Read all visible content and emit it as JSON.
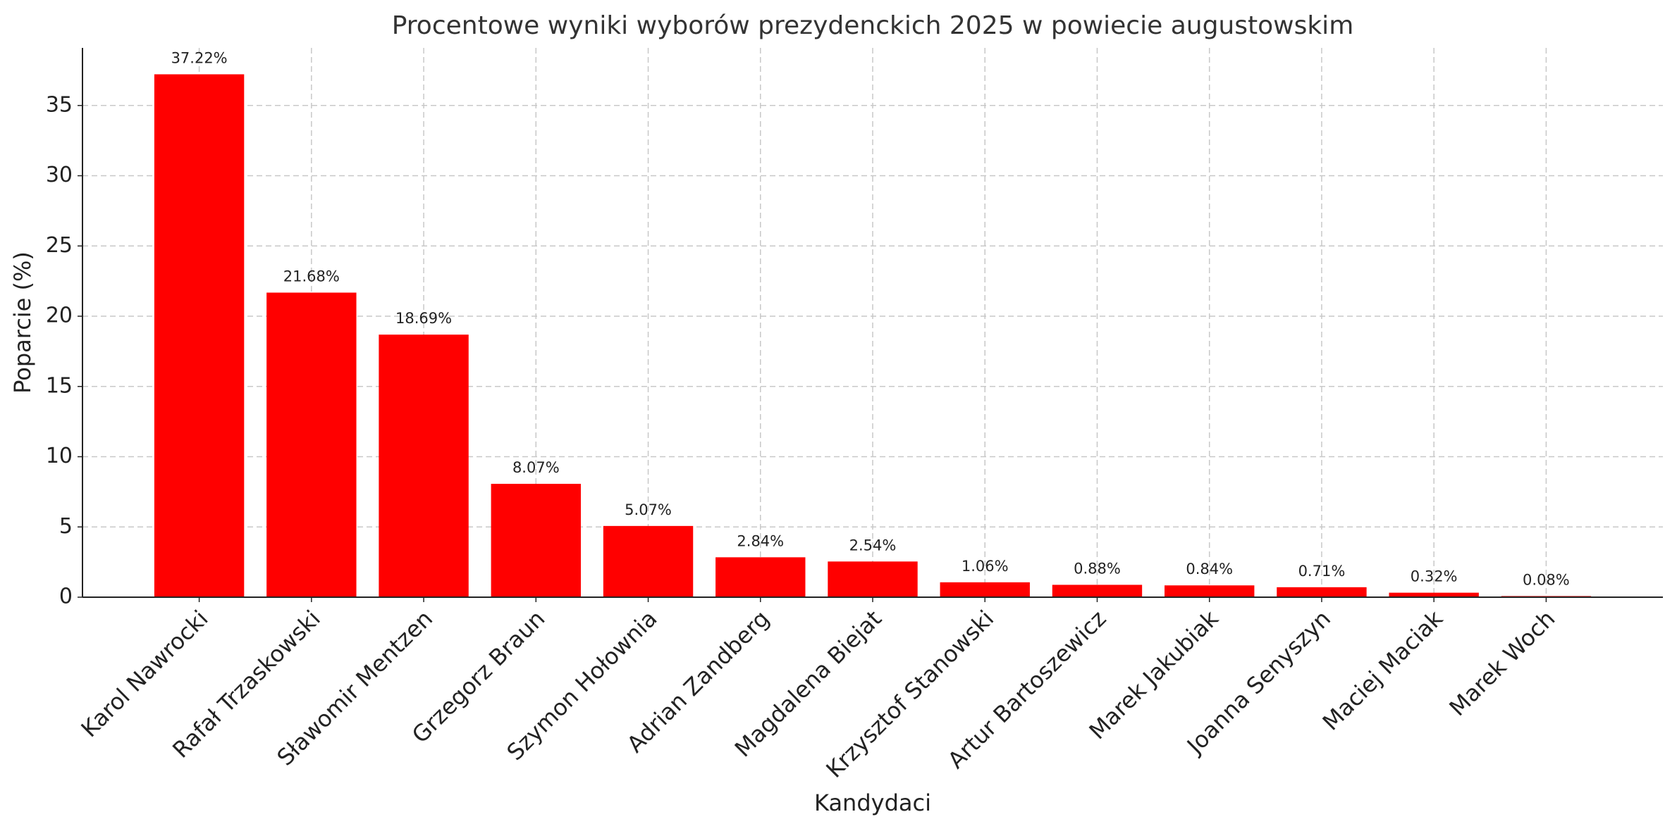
{
  "chart_data": {
    "type": "bar",
    "title": "Procentowe wyniki wyborów prezydenckich 2025 w powiecie augustowskim",
    "xlabel": "Kandydaci",
    "ylabel": "Poparcie (%)",
    "categories": [
      "Karol Nawrocki",
      "Rafał Trzaskowski",
      "Sławomir Mentzen",
      "Grzegorz Braun",
      "Szymon Hołownia",
      "Adrian Zandberg",
      "Magdalena Biejat",
      "Krzysztof Stanowski",
      "Artur Bartoszewicz",
      "Marek Jakubiak",
      "Joanna Senyszyn",
      "Maciej Maciak",
      "Marek Woch"
    ],
    "values": [
      37.22,
      21.68,
      18.69,
      8.07,
      5.07,
      2.84,
      2.54,
      1.06,
      0.88,
      0.84,
      0.71,
      0.32,
      0.08
    ],
    "value_labels": [
      "37.22%",
      "21.68%",
      "18.69%",
      "8.07%",
      "5.07%",
      "2.84%",
      "2.54%",
      "1.06%",
      "0.88%",
      "0.84%",
      "0.71%",
      "0.32%",
      "0.08%"
    ],
    "color": "#ff0000",
    "ylim": [
      0,
      39.1
    ],
    "yticks": [
      0,
      5,
      10,
      15,
      20,
      25,
      30,
      35
    ],
    "grid": true
  }
}
